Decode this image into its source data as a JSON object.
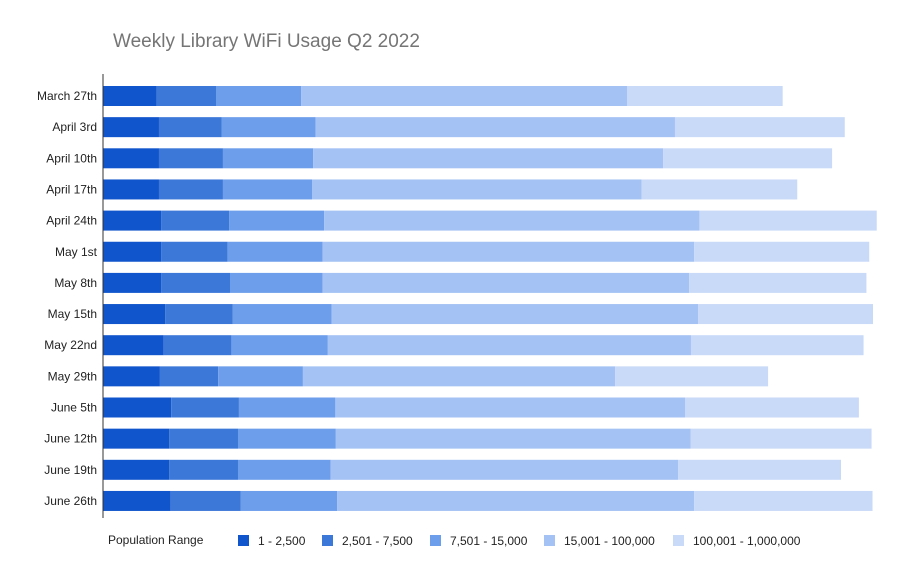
{
  "chart_data": {
    "type": "bar",
    "orientation": "horizontal",
    "stacked": true,
    "title": "Weekly Library WiFi Usage Q2 2022",
    "legend_title": "Population Range",
    "legend_position": "bottom-left",
    "grid": false,
    "categories": [
      "March 27th",
      "April 3rd",
      "April 10th",
      "April 17th",
      "April 24th",
      "May 1st",
      "May 8th",
      "May 15th",
      "May 22nd",
      "May 29th",
      "June 5th",
      "June 12th",
      "June 19th",
      "June 26th"
    ],
    "xlim": [
      0,
      1620
    ],
    "series": [
      {
        "name": "1 - 2,500",
        "color": "#1155cc",
        "values": [
          114,
          119,
          119,
          119,
          124,
          124,
          124,
          132,
          129,
          121,
          145,
          141,
          141,
          144
        ]
      },
      {
        "name": "2,501 - 7,500",
        "color": "#3c78d8",
        "values": [
          127,
          133,
          136,
          136,
          144,
          141,
          146,
          144,
          144,
          124,
          144,
          146,
          146,
          149
        ]
      },
      {
        "name": "7,501 - 15,000",
        "color": "#6d9eeb",
        "values": [
          180,
          200,
          192,
          190,
          202,
          202,
          197,
          210,
          205,
          180,
          205,
          208,
          197,
          205
        ]
      },
      {
        "name": "15,001 - 100,000",
        "color": "#a4c2f4",
        "values": [
          693,
          764,
          744,
          700,
          798,
          790,
          779,
          779,
          772,
          664,
          744,
          754,
          739,
          759
        ]
      },
      {
        "name": "100,001 - 1,000,000",
        "color": "#c9daf8",
        "values": [
          331,
          361,
          359,
          331,
          377,
          372,
          377,
          372,
          367,
          325,
          369,
          385,
          346,
          379
        ]
      }
    ]
  }
}
